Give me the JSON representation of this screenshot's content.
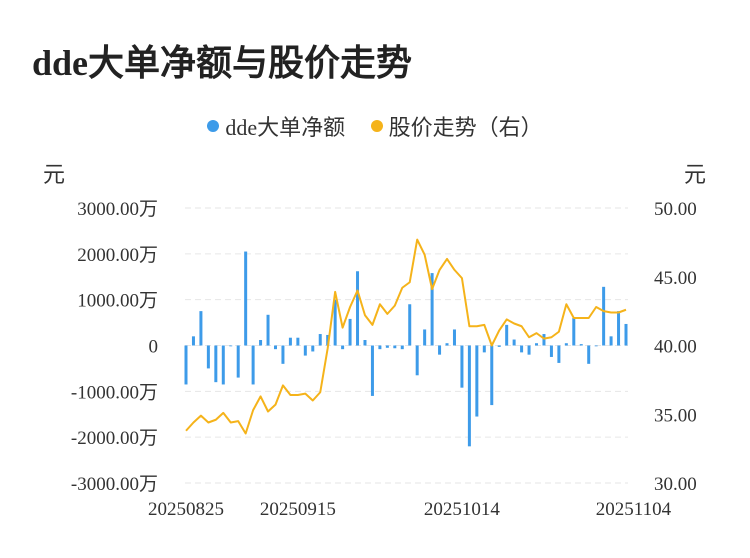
{
  "title": "dde大单净额与股价走势",
  "legend": {
    "series1": "dde大单净额",
    "series2": "股价走势（右）"
  },
  "units": {
    "left": "元",
    "right": "元"
  },
  "colors": {
    "bar": "#3d9be9",
    "line": "#f5b31a",
    "grid": "#e6e6e6"
  },
  "chart_data": {
    "type": "bar",
    "title": "dde大单净额与股价走势",
    "x_tick_labels": [
      "20250825",
      "20250915",
      "20251014",
      "20251104"
    ],
    "y_left_ticks": [
      "3000.00万",
      "2000.00万",
      "1000.00万",
      "0",
      "-1000.00万",
      "-2000.00万",
      "-3000.00万"
    ],
    "y_right_ticks": [
      "50.00",
      "45.00",
      "40.00",
      "35.00",
      "30.00"
    ],
    "y_left_range": [
      -3000,
      3000
    ],
    "y_right_range": [
      30,
      50
    ],
    "grid": true,
    "legend_position": "top-center",
    "series": [
      {
        "name": "dde大单净额",
        "axis": "left",
        "type": "bar",
        "unit": "万",
        "values": [
          -850,
          200,
          750,
          -500,
          -800,
          -850,
          0,
          -700,
          2050,
          -850,
          120,
          670,
          -80,
          -400,
          170,
          170,
          -220,
          -130,
          250,
          230,
          1000,
          -80,
          580,
          1620,
          120,
          -1100,
          -80,
          -50,
          -60,
          -80,
          900,
          -650,
          350,
          1580,
          -200,
          50,
          350,
          -920,
          -2200,
          -1550,
          -150,
          -1300,
          -30,
          450,
          130,
          -150,
          -200,
          50,
          250,
          -250,
          -380,
          50,
          600,
          30,
          -400,
          0,
          1280,
          200,
          750,
          470
        ]
      },
      {
        "name": "股价走势（右）",
        "axis": "right",
        "type": "line",
        "values": [
          33.8,
          34.4,
          34.9,
          34.4,
          34.6,
          35.1,
          34.4,
          34.5,
          33.6,
          35.3,
          36.3,
          35.2,
          35.7,
          37.1,
          36.4,
          36.4,
          36.5,
          36.0,
          36.6,
          39.8,
          43.9,
          41.3,
          42.8,
          44.0,
          42.2,
          41.5,
          43.0,
          42.3,
          42.9,
          44.2,
          44.6,
          47.7,
          46.6,
          44.1,
          45.5,
          46.3,
          45.5,
          44.9,
          41.4,
          41.4,
          41.5,
          40.0,
          41.1,
          41.9,
          41.6,
          41.4,
          40.6,
          40.9,
          40.5,
          40.6,
          41.0,
          43.0,
          42.0,
          42.0,
          42.0,
          42.8,
          42.5,
          42.4,
          42.4,
          42.6
        ]
      }
    ]
  }
}
